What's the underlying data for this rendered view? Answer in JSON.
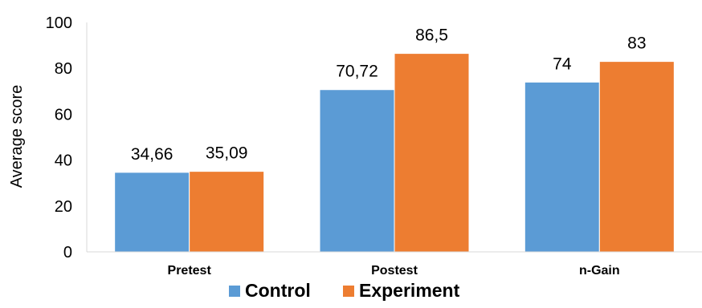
{
  "chart_data": {
    "type": "bar",
    "ylabel": "Average score",
    "categories": [
      "Pretest",
      "Postest",
      "n-Gain"
    ],
    "series": [
      {
        "name": "Control",
        "color": "#5B9BD5",
        "values": [
          34.66,
          70.72,
          74
        ],
        "labels": [
          "34,66",
          "70,72",
          "74"
        ]
      },
      {
        "name": "Experiment",
        "color": "#ED7D31",
        "values": [
          35.09,
          86.5,
          83
        ],
        "labels": [
          "35,09",
          "86,5",
          "83"
        ]
      }
    ],
    "yticks": [
      "0",
      "20",
      "40",
      "60",
      "80",
      "100"
    ],
    "ylim": [
      0,
      100
    ],
    "grid": false,
    "legend": "bottom"
  }
}
